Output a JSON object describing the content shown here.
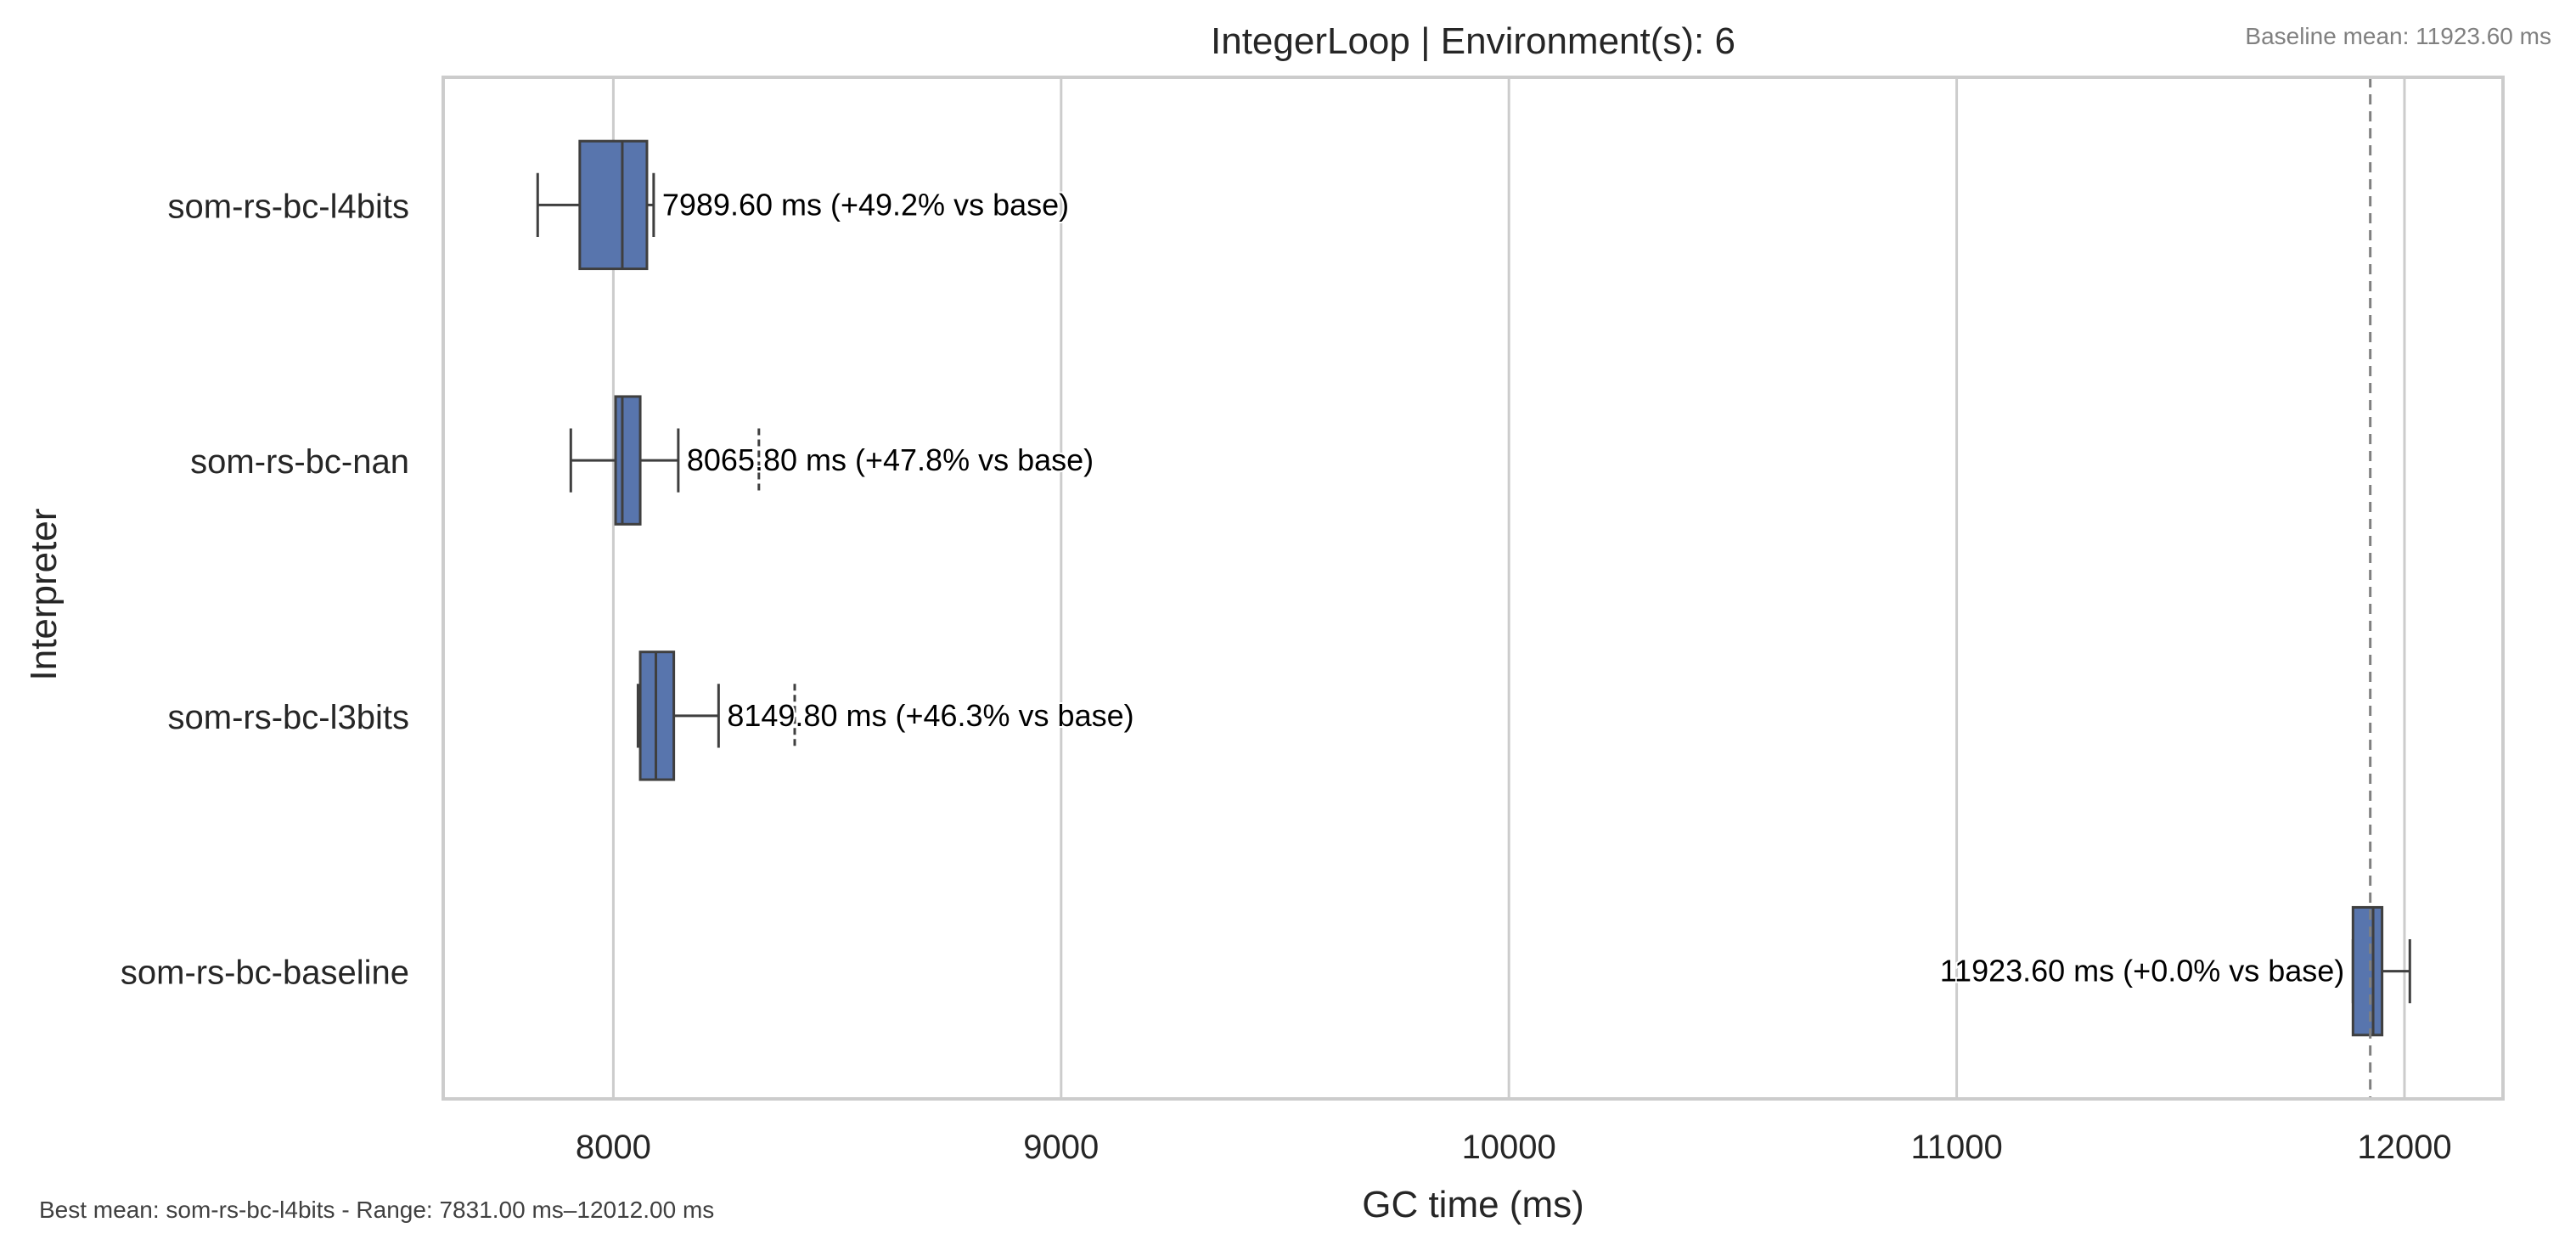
{
  "chart_data": {
    "type": "box",
    "orientation": "horizontal",
    "title": "IntegerLoop | Environment(s): 6",
    "xlabel": "GC time (ms)",
    "ylabel": "Interpreter",
    "xlim": [
      7620,
      12220
    ],
    "xticks": [
      8000,
      9000,
      10000,
      11000,
      12000
    ],
    "grid": "vertical",
    "baseline_note": "Baseline mean: 11923.60 ms",
    "footer_note": "Best mean: som-rs-bc-l4bits - Range: 7831.00 ms–12012.00 ms",
    "baseline_mean": 11923.6,
    "colors": {
      "box": "#5875ad",
      "edge": "#3f3f3f",
      "grid": "#cccccc",
      "baseline": "#808080"
    },
    "categories": [
      "som-rs-bc-l4bits",
      "som-rs-bc-nan",
      "som-rs-bc-l3bits",
      "som-rs-bc-baseline"
    ],
    "boxes": [
      {
        "name": "som-rs-bc-l4bits",
        "whisker_low": 7831,
        "q1": 7925,
        "median": 8020,
        "q3": 8075,
        "whisker_high": 8090,
        "mean": 7989.6,
        "outliers": [],
        "label": "7989.60 ms  (+49.2% vs base)"
      },
      {
        "name": "som-rs-bc-nan",
        "whisker_low": 7905,
        "q1": 8005,
        "median": 8020,
        "q3": 8060,
        "whisker_high": 8145,
        "mean": 8065.8,
        "outliers": [
          8325
        ],
        "label": "8065.80 ms  (+47.8% vs base)"
      },
      {
        "name": "som-rs-bc-l3bits",
        "whisker_low": 8055,
        "q1": 8060,
        "median": 8095,
        "q3": 8135,
        "whisker_high": 8235,
        "mean": 8149.8,
        "outliers": [
          8405
        ],
        "label": "8149.80 ms  (+46.3% vs base)"
      },
      {
        "name": "som-rs-bc-baseline",
        "whisker_low": 11885,
        "q1": 11885,
        "median": 11930,
        "q3": 11950,
        "whisker_high": 12012,
        "mean": 11923.6,
        "outliers": [],
        "label": "11923.60 ms  (+0.0% vs base)"
      }
    ]
  }
}
